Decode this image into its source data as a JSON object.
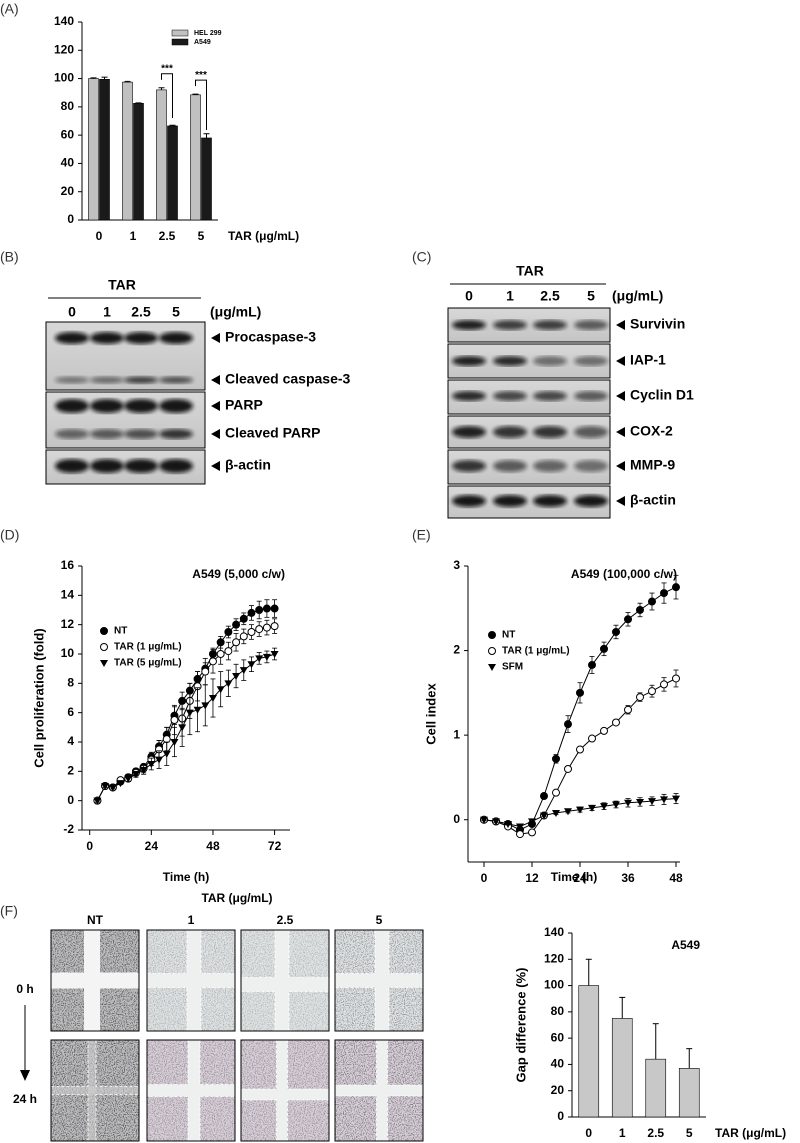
{
  "panel_labels": [
    "(A)",
    "(B)",
    "(C)",
    "(D)",
    "(E)",
    "(F)"
  ],
  "chart_data": [
    {
      "type": "bar",
      "categories": [
        "0",
        "1",
        "2.5",
        "5"
      ],
      "xlabel": "TAR (μg/mL)",
      "series": [
        {
          "name": "HEL 299",
          "color": "#c0c0c0",
          "values": [
            100,
            97.5,
            92,
            88.5
          ],
          "errors": [
            0.5,
            0.5,
            1.5,
            0.5
          ]
        },
        {
          "name": "A549",
          "color": "#1a1a1a",
          "values": [
            99.5,
            82.5,
            66.5,
            58
          ],
          "errors": [
            1.5,
            0.3,
            0.5,
            3
          ]
        }
      ],
      "annotations": [
        "***",
        "***"
      ],
      "ylim": [
        0,
        140
      ],
      "yticks": [
        0,
        20,
        40,
        60,
        80,
        100,
        120,
        140
      ]
    },
    {
      "type": "line",
      "annotation": "A549 (5,000 c/w)",
      "xlabel": "Time (h)",
      "ylabel": "Cell proliferation (fold)",
      "x": [
        3,
        6,
        9,
        12,
        15,
        18,
        21,
        24,
        27,
        30,
        33,
        36,
        39,
        42,
        45,
        48,
        51,
        54,
        57,
        60,
        63,
        66,
        69,
        72
      ],
      "series": [
        {
          "name": "NT",
          "color": "#000000",
          "marker": "filled-circle",
          "values": [
            0,
            1.0,
            0.9,
            1.3,
            1.6,
            2.0,
            2.3,
            3.0,
            3.7,
            4.5,
            5.8,
            6.8,
            7.5,
            8.3,
            9.0,
            10.0,
            10.8,
            11.5,
            12.0,
            12.4,
            12.8,
            13.0,
            13.1,
            13.1
          ],
          "errors": [
            0.1,
            0.1,
            0.1,
            0.1,
            0.2,
            0.2,
            0.2,
            0.3,
            0.4,
            0.5,
            0.6,
            0.6,
            0.5,
            0.5,
            0.4,
            0.4,
            0.4,
            0.4,
            0.4,
            0.4,
            0.5,
            0.6,
            0.6,
            0.6
          ]
        },
        {
          "name": "TAR (1 μg/mL)",
          "color": "#000000",
          "marker": "open-circle",
          "values": [
            0,
            1.0,
            0.9,
            1.4,
            1.5,
            1.9,
            2.2,
            2.8,
            3.5,
            4.2,
            5.5,
            5.6,
            6.8,
            7.8,
            8.8,
            9.5,
            10.0,
            10.2,
            10.8,
            11.2,
            11.5,
            11.7,
            11.8,
            11.9
          ],
          "errors": [
            0.1,
            0.1,
            0.1,
            0.1,
            0.2,
            0.2,
            0.3,
            0.4,
            0.6,
            0.8,
            1.0,
            1.2,
            1.2,
            1.0,
            0.9,
            0.8,
            0.7,
            0.6,
            0.6,
            0.5,
            0.5,
            0.5,
            0.5,
            0.5
          ]
        },
        {
          "name": "TAR (5 μg/mL)",
          "color": "#000000",
          "marker": "triangle-down",
          "values": [
            0,
            1.0,
            0.9,
            1.2,
            1.5,
            1.8,
            2.1,
            2.5,
            2.8,
            3.2,
            4.0,
            5.0,
            6.0,
            6.2,
            6.5,
            7.0,
            7.6,
            8.0,
            8.5,
            8.9,
            9.3,
            9.7,
            9.8,
            10.0
          ],
          "errors": [
            0.1,
            0.1,
            0.1,
            0.1,
            0.2,
            0.2,
            0.3,
            0.4,
            0.6,
            0.8,
            1.0,
            1.3,
            1.5,
            1.5,
            1.4,
            1.3,
            1.2,
            0.9,
            0.8,
            0.7,
            0.5,
            0.4,
            0.4,
            0.4
          ]
        }
      ],
      "xlim": [
        -3,
        78
      ],
      "xticks": [
        0,
        24,
        48,
        72
      ],
      "ylim": [
        -2,
        16
      ],
      "yticks": [
        -2,
        0,
        2,
        4,
        6,
        8,
        10,
        12,
        14,
        16
      ]
    },
    {
      "type": "line",
      "annotation": "A549 (100,000 c/w)",
      "xlabel": "Time (h)",
      "ylabel": "Cell index",
      "x": [
        0,
        3,
        6,
        9,
        12,
        15,
        18,
        21,
        24,
        27,
        30,
        33,
        36,
        39,
        42,
        45,
        48
      ],
      "series": [
        {
          "name": "NT",
          "color": "#000000",
          "marker": "filled-circle",
          "values": [
            0,
            -0.02,
            -0.05,
            -0.12,
            -0.05,
            0.28,
            0.72,
            1.13,
            1.5,
            1.83,
            2.02,
            2.22,
            2.37,
            2.48,
            2.58,
            2.68,
            2.75
          ],
          "errors": [
            0.01,
            0.01,
            0.01,
            0.02,
            0.02,
            0.03,
            0.05,
            0.1,
            0.12,
            0.1,
            0.08,
            0.08,
            0.08,
            0.08,
            0.1,
            0.12,
            0.14
          ]
        },
        {
          "name": "TAR (1 μg/mL)",
          "color": "#000000",
          "marker": "open-circle",
          "values": [
            0,
            -0.02,
            -0.08,
            -0.17,
            -0.15,
            0.05,
            0.32,
            0.6,
            0.83,
            0.96,
            1.05,
            1.15,
            1.3,
            1.45,
            1.52,
            1.6,
            1.67
          ],
          "errors": [
            0.01,
            0.01,
            0.01,
            0.02,
            0.02,
            0.02,
            0.03,
            0.03,
            0.03,
            0.03,
            0.03,
            0.03,
            0.05,
            0.05,
            0.07,
            0.08,
            0.1
          ]
        },
        {
          "name": "SFM",
          "color": "#000000",
          "marker": "triangle-down",
          "values": [
            0,
            -0.02,
            -0.05,
            -0.08,
            -0.02,
            0.05,
            0.08,
            0.1,
            0.12,
            0.14,
            0.16,
            0.18,
            0.2,
            0.21,
            0.22,
            0.24,
            0.25
          ],
          "errors": [
            0.01,
            0.01,
            0.01,
            0.01,
            0.01,
            0.01,
            0.02,
            0.02,
            0.03,
            0.03,
            0.04,
            0.04,
            0.05,
            0.05,
            0.05,
            0.06,
            0.06
          ]
        }
      ],
      "xlim": [
        -4,
        49
      ],
      "xticks": [
        0,
        12,
        24,
        36,
        48
      ],
      "ylim": [
        -0.5,
        3
      ],
      "yticks": [
        0,
        1,
        2,
        3
      ]
    },
    {
      "type": "bar",
      "categories": [
        "0",
        "1",
        "2.5",
        "5"
      ],
      "xlabel": "TAR (μg/mL)",
      "ylabel": "Gap difference (%)",
      "annotation": "A549",
      "series": [
        {
          "name": "Gap difference",
          "color": "#c8c8c8",
          "values": [
            100,
            75,
            44,
            37
          ],
          "errors": [
            20,
            16,
            27,
            15
          ]
        }
      ],
      "ylim": [
        0,
        140
      ],
      "yticks": [
        0,
        20,
        40,
        60,
        80,
        100,
        120,
        140
      ]
    }
  ],
  "blot_b": {
    "header": "TAR",
    "lanes": [
      "0",
      "1",
      "2.5",
      "5"
    ],
    "unit": "(μg/mL)",
    "bands": [
      "Procaspase-3",
      "Cleaved caspase-3",
      "PARP",
      "Cleaved PARP",
      "β-actin"
    ]
  },
  "blot_c": {
    "header": "TAR",
    "lanes": [
      "0",
      "1",
      "2.5",
      "5"
    ],
    "unit": "(μg/mL)",
    "bands": [
      "Survivin",
      "IAP-1",
      "Cyclin D1",
      "COX-2",
      "MMP-9",
      "β-actin"
    ]
  },
  "scratch": {
    "title": "TAR (μg/mL)",
    "columns": [
      "NT",
      "1",
      "2.5",
      "5"
    ],
    "rows": [
      "0 h",
      "24 h"
    ]
  }
}
